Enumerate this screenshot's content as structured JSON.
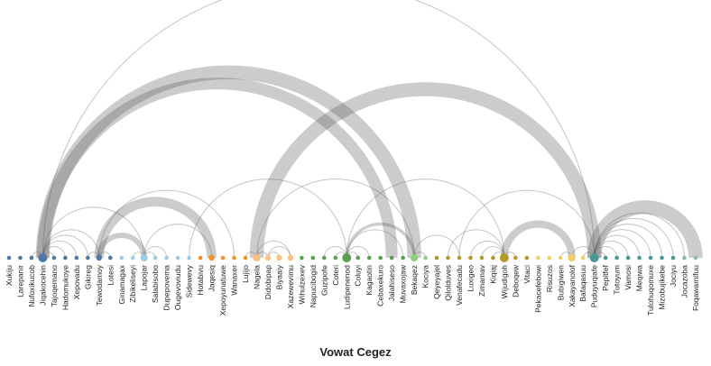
{
  "title": "Vowat Cegez",
  "chart_data": {
    "type": "arc-diagram",
    "title": "Vowat Cegez",
    "nodes": [
      {
        "name": "Xukiju",
        "color": "#4e79a7",
        "size": 1
      },
      {
        "name": "Larepanir",
        "color": "#4e79a7",
        "size": 1
      },
      {
        "name": "Nufoxikucob",
        "color": "#4e79a7",
        "size": 1
      },
      {
        "name": "Jiqakocehin",
        "color": "#4e79a7",
        "size": 4
      },
      {
        "name": "Tajoqemano",
        "color": "#4e79a7",
        "size": 1
      },
      {
        "name": "Hadomukoye",
        "color": "#4e79a7",
        "size": 1
      },
      {
        "name": "Xepovadu",
        "color": "#4e79a7",
        "size": 1
      },
      {
        "name": "Gikireg",
        "color": "#4e79a7",
        "size": 1
      },
      {
        "name": "Tewodamoy",
        "color": "#4e79a7",
        "size": 2
      },
      {
        "name": "Lotesi",
        "color": "#4e79a7",
        "size": 1
      },
      {
        "name": "Ginamagax",
        "color": "#a0cbe8",
        "size": 1
      },
      {
        "name": "Zibikeliseyi",
        "color": "#a0cbe8",
        "size": 1
      },
      {
        "name": "Lapojar",
        "color": "#a0cbe8",
        "size": 3
      },
      {
        "name": "Salabisobo",
        "color": "#a0cbe8",
        "size": 1
      },
      {
        "name": "Dupepovema",
        "color": "#a0cbe8",
        "size": 1
      },
      {
        "name": "Ougevoviudu",
        "color": "#a0cbe8",
        "size": 1
      },
      {
        "name": "Sidewevy",
        "color": "#a0cbe8",
        "size": 1
      },
      {
        "name": "Hotabivu",
        "color": "#f28e2b",
        "size": 1
      },
      {
        "name": "Jaqesiq",
        "color": "#f28e2b",
        "size": 2
      },
      {
        "name": "Xepoyunatuwe",
        "color": "#f28e2b",
        "size": 1
      },
      {
        "name": "Wanaxer",
        "color": "#f28e2b",
        "size": 1
      },
      {
        "name": "Lujijo",
        "color": "#f28e2b",
        "size": 1
      },
      {
        "name": "Nagela",
        "color": "#ffbe7d",
        "size": 3
      },
      {
        "name": "Didobipap",
        "color": "#ffbe7d",
        "size": 2
      },
      {
        "name": "Biyaaiy",
        "color": "#ffbe7d",
        "size": 2
      },
      {
        "name": "Xazewevimu",
        "color": "#ffbe7d",
        "size": 2
      },
      {
        "name": "Wihulzexev",
        "color": "#59a14f",
        "size": 1
      },
      {
        "name": "Napucibogid",
        "color": "#59a14f",
        "size": 1
      },
      {
        "name": "Guzipofe",
        "color": "#59a14f",
        "size": 1
      },
      {
        "name": "Coteri",
        "color": "#59a14f",
        "size": 1
      },
      {
        "name": "Ludipenenod",
        "color": "#59a14f",
        "size": 4
      },
      {
        "name": "Coluyi",
        "color": "#59a14f",
        "size": 1
      },
      {
        "name": "Kagaotin",
        "color": "#59a14f",
        "size": 1
      },
      {
        "name": "Cebaxekuro",
        "color": "#59a14f",
        "size": 1
      },
      {
        "name": "Jalahiseso",
        "color": "#59a14f",
        "size": 1
      },
      {
        "name": "Muvaxojaw",
        "color": "#59a14f",
        "size": 1
      },
      {
        "name": "Bekaqez",
        "color": "#8cd17d",
        "size": 3
      },
      {
        "name": "Kociya",
        "color": "#8cd17d",
        "size": 1
      },
      {
        "name": "Qeyeyajel",
        "color": "#b6992d",
        "size": 1
      },
      {
        "name": "Qilolduves",
        "color": "#b6992d",
        "size": 1
      },
      {
        "name": "Venafecadu",
        "color": "#b6992d",
        "size": 1
      },
      {
        "name": "Luxigeo",
        "color": "#b6992d",
        "size": 1
      },
      {
        "name": "Zimamav",
        "color": "#b6992d",
        "size": 1
      },
      {
        "name": "Kiqiaj",
        "color": "#b6992d",
        "size": 1
      },
      {
        "name": "Wijudigoh",
        "color": "#b6992d",
        "size": 4
      },
      {
        "name": "Deboqew",
        "color": "#b6992d",
        "size": 1
      },
      {
        "name": "Vitaci",
        "color": "#b6992d",
        "size": 1
      },
      {
        "name": "Pekacefebowi",
        "color": "#f1ce63",
        "size": 1
      },
      {
        "name": "Risuzos",
        "color": "#f1ce63",
        "size": 1
      },
      {
        "name": "Bubigiwen",
        "color": "#f1ce63",
        "size": 1
      },
      {
        "name": "Xakayanolof",
        "color": "#f1ce63",
        "size": 3
      },
      {
        "name": "Bafaqasuu",
        "color": "#f1ce63",
        "size": 1
      },
      {
        "name": "Puduyuqiafe",
        "color": "#499894",
        "size": 4
      },
      {
        "name": "Pepitfef",
        "color": "#499894",
        "size": 1
      },
      {
        "name": "Tutoyum",
        "color": "#499894",
        "size": 1
      },
      {
        "name": "Vamosi",
        "color": "#499894",
        "size": 1
      },
      {
        "name": "Meqiwa",
        "color": "#499894",
        "size": 1
      },
      {
        "name": "Tulohuqomuxe",
        "color": "#499894",
        "size": 1
      },
      {
        "name": "Mizobujikebe",
        "color": "#499894",
        "size": 1
      },
      {
        "name": "Jociyu",
        "color": "#499894",
        "size": 1
      },
      {
        "name": "Jocazoba",
        "color": "#86bcb6",
        "size": 1
      },
      {
        "name": "Foqawamifuu",
        "color": "#86bcb6",
        "size": 1
      }
    ],
    "links": [
      {
        "source": "Jiqakocehin",
        "target": "Bekaqez",
        "value": 7
      },
      {
        "source": "Jiqakocehin",
        "target": "Jalahiseso",
        "value": 6
      },
      {
        "source": "Jiqakocehin",
        "target": "Puduyuqiafe",
        "value": 1
      },
      {
        "source": "Jiqakocehin",
        "target": "Lapojar",
        "value": 1
      },
      {
        "source": "Jiqakocehin",
        "target": "Xepovadu",
        "value": 1
      },
      {
        "source": "Jiqakocehin",
        "target": "Tajoqemano",
        "value": 1
      },
      {
        "source": "Jiqakocehin",
        "target": "Hadomukoye",
        "value": 1
      },
      {
        "source": "Jiqakocehin",
        "target": "Gikireg",
        "value": 1
      },
      {
        "source": "Jiqakocehin",
        "target": "Tewodamoy",
        "value": 1
      },
      {
        "source": "Nufoxikucob",
        "target": "Jiqakocehin",
        "value": 1
      },
      {
        "source": "Tewodamoy",
        "target": "Jaqesiq",
        "value": 5
      },
      {
        "source": "Tewodamoy",
        "target": "Lapojar",
        "value": 3
      },
      {
        "source": "Tewodamoy",
        "target": "Wanaxer",
        "value": 1
      },
      {
        "source": "Tewodamoy",
        "target": "Lotesi",
        "value": 1
      },
      {
        "source": "Gikireg",
        "target": "Tewodamoy",
        "value": 1
      },
      {
        "source": "Lapojar",
        "target": "Dupepovema",
        "value": 1
      },
      {
        "source": "Lapojar",
        "target": "Jaqesiq",
        "value": 1
      },
      {
        "source": "Lapojar",
        "target": "Salabisobo",
        "value": 1
      },
      {
        "source": "Zibikeliseyi",
        "target": "Lapojar",
        "value": 1
      },
      {
        "source": "Sidewevy",
        "target": "Ludipenenod",
        "value": 1
      },
      {
        "source": "Nagela",
        "target": "Puduyuqiafe",
        "value": 7
      },
      {
        "source": "Nagela",
        "target": "Bekaqez",
        "value": 1
      },
      {
        "source": "Nagela",
        "target": "Didobipap",
        "value": 1
      },
      {
        "source": "Lujijo",
        "target": "Nagela",
        "value": 1
      },
      {
        "source": "Didobipap",
        "target": "Xazewevimu",
        "value": 1
      },
      {
        "source": "Didobipap",
        "target": "Biyaaiy",
        "value": 1
      },
      {
        "source": "Nagela",
        "target": "Xazewevimu",
        "value": 1
      },
      {
        "source": "Coteri",
        "target": "Ludipenenod",
        "value": 1
      },
      {
        "source": "Guzipofe",
        "target": "Ludipenenod",
        "value": 1
      },
      {
        "source": "Ludipenenod",
        "target": "Bekaqez",
        "value": 2
      },
      {
        "source": "Ludipenenod",
        "target": "Muvaxojaw",
        "value": 1
      },
      {
        "source": "Ludipenenod",
        "target": "Kagaotin",
        "value": 1
      },
      {
        "source": "Ludipenenod",
        "target": "Coluyi",
        "value": 1
      },
      {
        "source": "Ludipenenod",
        "target": "Wijudigoh",
        "value": 1
      },
      {
        "source": "Kociya",
        "target": "Bekaqez",
        "value": 1
      },
      {
        "source": "Bekaqez",
        "target": "Venafecadu",
        "value": 1
      },
      {
        "source": "Venafecadu",
        "target": "Puduyuqiafe",
        "value": 1
      },
      {
        "source": "Qilolduves",
        "target": "Wijudigoh",
        "value": 1
      },
      {
        "source": "Wijudigoh",
        "target": "Xakayanolof",
        "value": 4
      },
      {
        "source": "Luxigeo",
        "target": "Wijudigoh",
        "value": 1
      },
      {
        "source": "Zimamav",
        "target": "Wijudigoh",
        "value": 1
      },
      {
        "source": "Kiqiaj",
        "target": "Wijudigoh",
        "value": 1
      },
      {
        "source": "Wijudigoh",
        "target": "Deboqew",
        "value": 1
      },
      {
        "source": "Bubigiwen",
        "target": "Xakayanolof",
        "value": 1
      },
      {
        "source": "Puduyuqiafe",
        "target": "Foqawamifuu",
        "value": 7
      },
      {
        "source": "Puduyuqiafe",
        "target": "Jocazoba",
        "value": 1
      },
      {
        "source": "Puduyuqiafe",
        "target": "Jociyu",
        "value": 1
      },
      {
        "source": "Puduyuqiafe",
        "target": "Mizobujikebe",
        "value": 1
      },
      {
        "source": "Puduyuqiafe",
        "target": "Tulohuqomuxe",
        "value": 1
      },
      {
        "source": "Puduyuqiafe",
        "target": "Meqiwa",
        "value": 1
      },
      {
        "source": "Puduyuqiafe",
        "target": "Vamosi",
        "value": 1
      },
      {
        "source": "Puduyuqiafe",
        "target": "Tutoyum",
        "value": 1
      },
      {
        "source": "Puduyuqiafe",
        "target": "Pepitfef",
        "value": 1
      },
      {
        "source": "Bafaqasuu",
        "target": "Puduyuqiafe",
        "value": 1
      },
      {
        "source": "Xakayanolof",
        "target": "Puduyuqiafe",
        "value": 1
      }
    ]
  }
}
